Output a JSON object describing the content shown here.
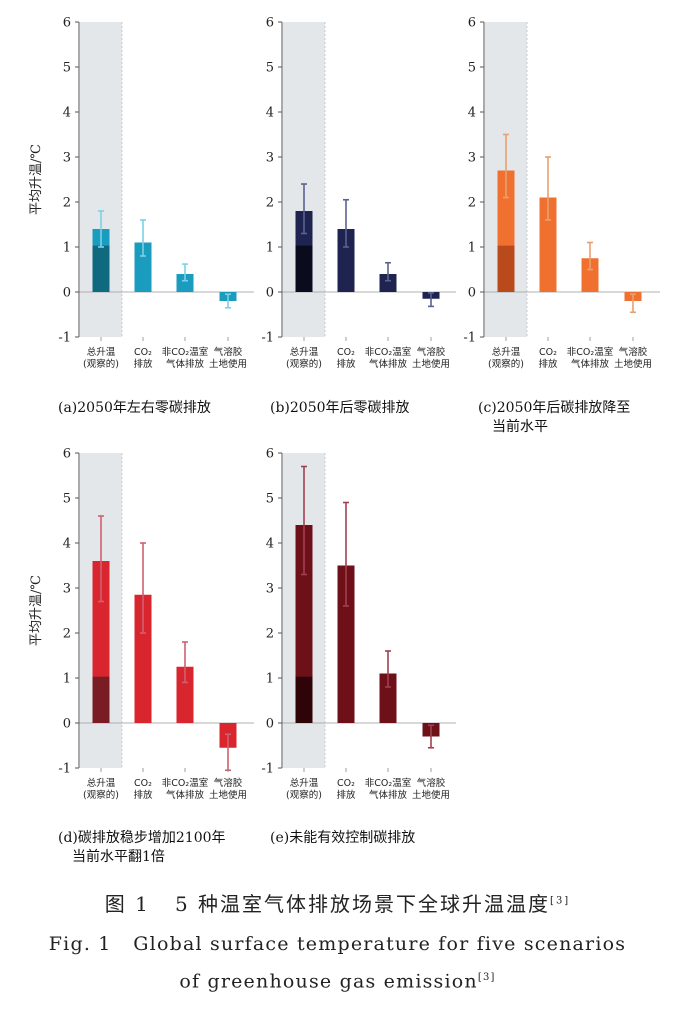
{
  "chart_data": [
    {
      "type": "bar",
      "title": "(a)2050年左右零碳排放",
      "ylabel": "平均升温/℃",
      "ylim": [
        -1,
        6
      ],
      "yticks": [
        -1,
        0,
        1,
        2,
        3,
        4,
        5,
        6
      ],
      "categories": [
        [
          "总升温",
          "(观察的)"
        ],
        [
          "CO₂",
          "排放"
        ],
        [
          "非CO₂温室",
          "气体排放"
        ],
        [
          "气溶胶",
          "土地使用"
        ]
      ],
      "values": [
        1.4,
        1.1,
        0.4,
        -0.2
      ],
      "error_low": [
        1.0,
        0.8,
        0.25,
        -0.35
      ],
      "error_high": [
        1.8,
        1.6,
        0.62,
        -0.05
      ],
      "observed": 1.03,
      "color": "#1a9cbf",
      "observed_color": "#0f6a80",
      "error_color": "#7fcfe6"
    },
    {
      "type": "bar",
      "title": "(b)2050年后零碳排放",
      "ylabel": "",
      "ylim": [
        -1,
        6
      ],
      "yticks": [
        -1,
        0,
        1,
        2,
        3,
        4,
        5,
        6
      ],
      "categories": [
        [
          "总升温",
          "(观察的)"
        ],
        [
          "CO₂",
          "排放"
        ],
        [
          "非CO₂温室",
          "气体排放"
        ],
        [
          "气溶胶",
          "土地使用"
        ]
      ],
      "values": [
        1.8,
        1.4,
        0.4,
        -0.15
      ],
      "error_low": [
        1.3,
        1.0,
        0.25,
        -0.32
      ],
      "error_high": [
        2.4,
        2.05,
        0.65,
        -0.02
      ],
      "observed": 1.03,
      "color": "#1e2350",
      "observed_color": "#0a0c1e",
      "error_color": "#5a6290"
    },
    {
      "type": "bar",
      "title": "(c)2050年后碳排放降至",
      "title2": "当前水平",
      "ylabel": "",
      "ylim": [
        -1,
        6
      ],
      "yticks": [
        -1,
        0,
        1,
        2,
        3,
        4,
        5,
        6
      ],
      "categories": [
        [
          "总升温",
          "(观察的)"
        ],
        [
          "CO₂",
          "排放"
        ],
        [
          "非CO₂温室",
          "气体排放"
        ],
        [
          "气溶胶",
          "土地使用"
        ]
      ],
      "values": [
        2.7,
        2.1,
        0.75,
        -0.2
      ],
      "error_low": [
        2.1,
        1.6,
        0.5,
        -0.45
      ],
      "error_high": [
        3.5,
        3.0,
        1.1,
        -0.05
      ],
      "observed": 1.03,
      "color": "#f07030",
      "observed_color": "#b84a1c",
      "error_color": "#e8a070"
    },
    {
      "type": "bar",
      "title": "(d)碳排放稳步增加2100年",
      "title2": "当前水平翻1倍",
      "ylabel": "平均升温/℃",
      "ylim": [
        -1,
        6
      ],
      "yticks": [
        -1,
        0,
        1,
        2,
        3,
        4,
        5,
        6
      ],
      "categories": [
        [
          "总升温",
          "(观察的)"
        ],
        [
          "CO₂",
          "排放"
        ],
        [
          "非CO₂温室",
          "气体排放"
        ],
        [
          "气溶胶",
          "土地使用"
        ]
      ],
      "values": [
        3.6,
        2.85,
        1.25,
        -0.55
      ],
      "error_low": [
        2.7,
        2.0,
        0.9,
        -1.05
      ],
      "error_high": [
        4.6,
        4.0,
        1.8,
        -0.25
      ],
      "observed": 1.03,
      "color": "#d9252d",
      "observed_color": "#7a1c24",
      "error_color": "#d06070"
    },
    {
      "type": "bar",
      "title": "(e)未能有效控制碳排放",
      "ylabel": "",
      "ylim": [
        -1,
        6
      ],
      "yticks": [
        -1,
        0,
        1,
        2,
        3,
        4,
        5,
        6
      ],
      "categories": [
        [
          "总升温",
          "(观察的)"
        ],
        [
          "CO₂",
          "排放"
        ],
        [
          "非CO₂温室",
          "气体排放"
        ],
        [
          "气溶胶",
          "土地使用"
        ]
      ],
      "values": [
        4.4,
        3.5,
        1.1,
        -0.3
      ],
      "error_low": [
        3.3,
        2.6,
        0.8,
        -0.55
      ],
      "error_high": [
        5.7,
        4.9,
        1.6,
        -0.05
      ],
      "observed": 1.03,
      "color": "#6e1018",
      "observed_color": "#2e0408",
      "error_color": "#a04050"
    }
  ],
  "caption": {
    "cn_prefix": "图 1",
    "cn_text": "5 种温室气体排放场景下全球升温温度",
    "cn_ref": "[3]",
    "en_line1": "Fig. 1   Global surface temperature for five scenarios",
    "en_line2": "of greenhouse gas emission",
    "en_ref": "[3]"
  }
}
